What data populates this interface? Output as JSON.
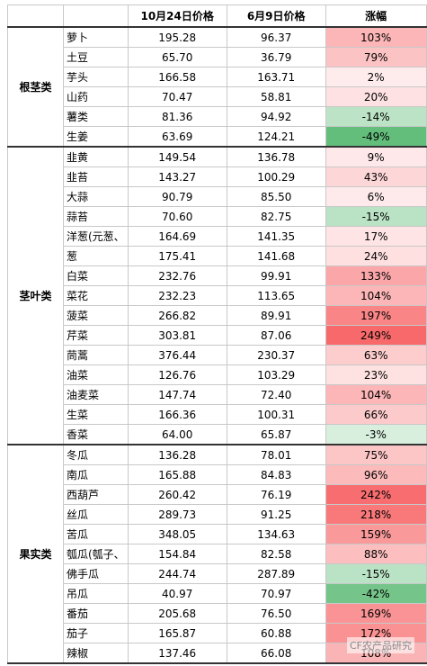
{
  "header": [
    "10月24日价格",
    "6月9日价格",
    "涨幅"
  ],
  "groups": [
    {
      "name": "根茎类",
      "rows": [
        [
          "萝卜",
          "195.28",
          "96.37",
          "103%"
        ],
        [
          "土豆",
          "65.70",
          "36.79",
          "79%"
        ],
        [
          "芋头",
          "166.58",
          "163.71",
          "2%"
        ],
        [
          "山药",
          "70.47",
          "58.81",
          "20%"
        ],
        [
          "薯类",
          "81.36",
          "94.92",
          "-14%"
        ],
        [
          "生姜",
          "63.69",
          "124.21",
          "-49%"
        ]
      ]
    },
    {
      "name": "茎叶类",
      "rows": [
        [
          "韭黄",
          "149.54",
          "136.78",
          "9%"
        ],
        [
          "韭苔",
          "143.27",
          "100.29",
          "43%"
        ],
        [
          "大蒜",
          "90.79",
          "85.50",
          "6%"
        ],
        [
          "蒜苔",
          "70.60",
          "82.75",
          "-15%"
        ],
        [
          "洋葱(元葱、",
          "164.69",
          "141.35",
          "17%"
        ],
        [
          "葱",
          "175.41",
          "141.68",
          "24%"
        ],
        [
          "白菜",
          "232.76",
          "99.91",
          "133%"
        ],
        [
          "菜花",
          "232.23",
          "113.65",
          "104%"
        ],
        [
          "菠菜",
          "266.82",
          "89.91",
          "197%"
        ],
        [
          "芹菜",
          "303.81",
          "87.06",
          "249%"
        ],
        [
          "茼蒿",
          "376.44",
          "230.37",
          "63%"
        ],
        [
          "油菜",
          "126.76",
          "103.29",
          "23%"
        ],
        [
          "油麦菜",
          "147.74",
          "72.40",
          "104%"
        ],
        [
          "生菜",
          "166.36",
          "100.31",
          "66%"
        ],
        [
          "香菜",
          "64.00",
          "65.87",
          "-3%"
        ]
      ]
    },
    {
      "name": "果实类",
      "rows": [
        [
          "冬瓜",
          "136.28",
          "78.01",
          "75%"
        ],
        [
          "南瓜",
          "165.88",
          "84.83",
          "96%"
        ],
        [
          "西葫芦",
          "260.42",
          "76.19",
          "242%"
        ],
        [
          "丝瓜",
          "289.73",
          "91.25",
          "218%"
        ],
        [
          "苦瓜",
          "348.05",
          "134.63",
          "159%"
        ],
        [
          "瓠瓜(瓠子、",
          "154.84",
          "82.58",
          "88%"
        ],
        [
          "佛手瓜",
          "244.74",
          "287.89",
          "-15%"
        ],
        [
          "吊瓜",
          "40.97",
          "70.97",
          "-42%"
        ],
        [
          "番茄",
          "205.68",
          "76.50",
          "169%"
        ],
        [
          "茄子",
          "165.87",
          "60.88",
          "172%"
        ],
        [
          "辣椒",
          "137.46",
          "66.08",
          "108%"
        ]
      ]
    }
  ],
  "watermark": "CF农产品研究"
}
